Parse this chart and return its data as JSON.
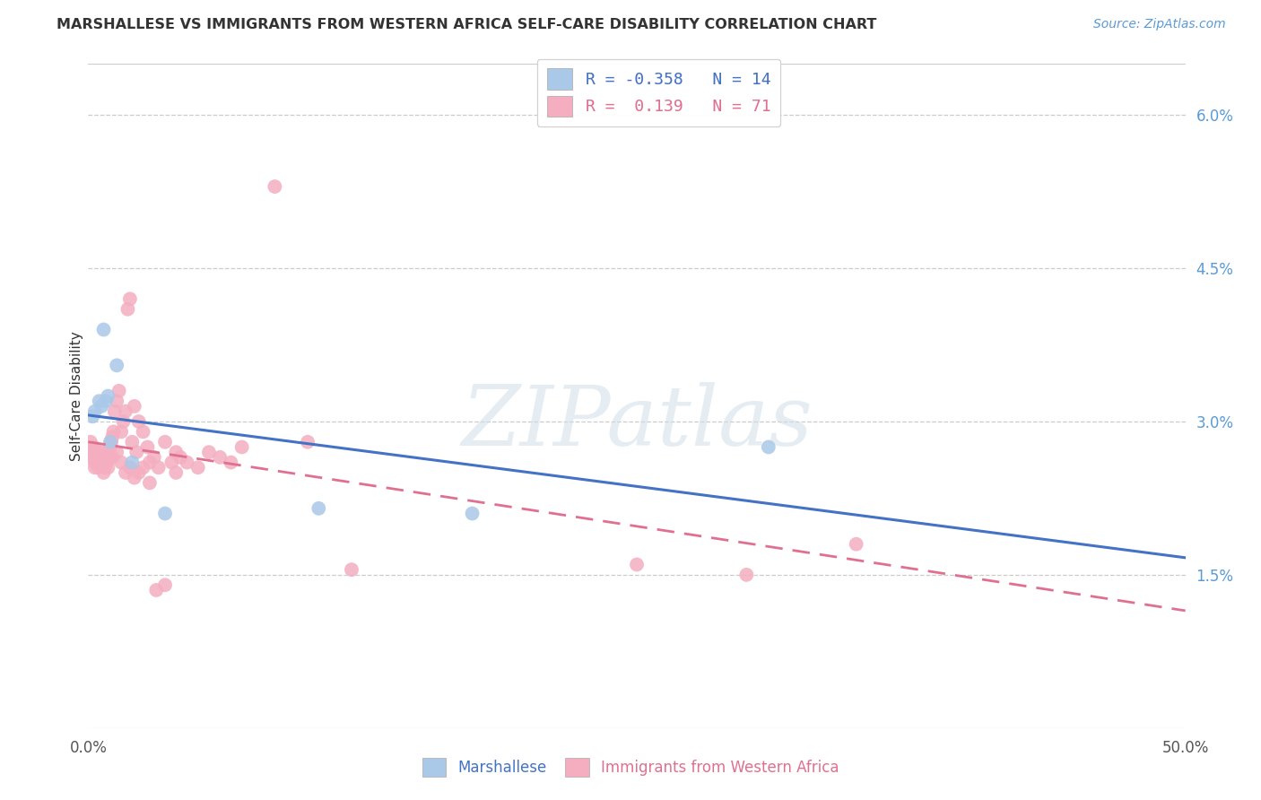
{
  "title": "MARSHALLESE VS IMMIGRANTS FROM WESTERN AFRICA SELF-CARE DISABILITY CORRELATION CHART",
  "source": "Source: ZipAtlas.com",
  "ylabel": "Self-Care Disability",
  "xlim": [
    0.0,
    50.0
  ],
  "ylim": [
    0.0,
    6.5
  ],
  "yticks": [
    1.5,
    3.0,
    4.5,
    6.0
  ],
  "ytick_labels": [
    "1.5%",
    "3.0%",
    "4.5%",
    "6.0%"
  ],
  "xtick_positions": [
    0,
    50
  ],
  "xtick_labels": [
    "0.0%",
    "50.0%"
  ],
  "background_color": "#ffffff",
  "marshallese_scatter_color": "#aac8e8",
  "marshallese_line_color": "#4472C4",
  "marshallese_R": -0.358,
  "marshallese_N": 14,
  "marshallese_x": [
    0.2,
    0.3,
    0.5,
    0.6,
    0.7,
    0.8,
    0.9,
    1.0,
    1.3,
    2.0,
    3.5,
    10.5,
    17.5,
    31.0
  ],
  "marshallese_y": [
    3.05,
    3.1,
    3.2,
    3.15,
    3.9,
    3.2,
    3.25,
    2.8,
    3.55,
    2.6,
    2.1,
    2.15,
    2.1,
    2.75
  ],
  "africa_scatter_color": "#f4aec0",
  "africa_line_color": "#e07090",
  "africa_R": 0.139,
  "africa_N": 71,
  "africa_x": [
    0.1,
    0.15,
    0.2,
    0.25,
    0.3,
    0.35,
    0.4,
    0.45,
    0.5,
    0.55,
    0.6,
    0.65,
    0.7,
    0.75,
    0.8,
    0.85,
    0.9,
    0.95,
    1.0,
    1.05,
    1.1,
    1.15,
    1.2,
    1.3,
    1.4,
    1.5,
    1.6,
    1.7,
    1.8,
    1.9,
    2.0,
    2.1,
    2.2,
    2.3,
    2.5,
    2.7,
    2.8,
    3.0,
    3.2,
    3.5,
    3.8,
    4.0,
    4.2,
    4.5,
    5.0,
    5.5,
    6.0,
    6.5,
    7.0,
    8.5,
    0.3,
    0.5,
    0.7,
    0.9,
    1.1,
    1.3,
    1.5,
    1.7,
    1.9,
    2.1,
    2.3,
    2.5,
    2.8,
    3.1,
    3.5,
    4.0,
    10.0,
    12.0,
    25.0,
    30.0,
    35.0
  ],
  "africa_y": [
    2.8,
    2.7,
    2.65,
    2.75,
    2.6,
    2.7,
    2.65,
    2.55,
    2.7,
    2.6,
    2.7,
    2.65,
    2.6,
    2.55,
    2.65,
    2.6,
    2.7,
    2.65,
    2.75,
    2.8,
    2.85,
    2.9,
    3.1,
    3.2,
    3.3,
    2.9,
    3.0,
    3.1,
    4.1,
    4.2,
    2.8,
    3.15,
    2.7,
    3.0,
    2.9,
    2.75,
    2.6,
    2.65,
    2.55,
    2.8,
    2.6,
    2.7,
    2.65,
    2.6,
    2.55,
    2.7,
    2.65,
    2.6,
    2.75,
    5.3,
    2.55,
    2.6,
    2.5,
    2.55,
    2.65,
    2.7,
    2.6,
    2.5,
    2.55,
    2.45,
    2.5,
    2.55,
    2.4,
    1.35,
    1.4,
    2.5,
    2.8,
    1.55,
    1.6,
    1.5,
    1.8
  ],
  "legend_blue_label": "Marshallese",
  "legend_pink_label": "Immigrants from Western Africa",
  "watermark_text": "ZIPatlas",
  "watermark_color": "#d0dfe8",
  "title_color": "#333333",
  "source_color": "#5b9bd5",
  "tick_color_right": "#5b9bd5",
  "tick_color_bottom": "#555555"
}
